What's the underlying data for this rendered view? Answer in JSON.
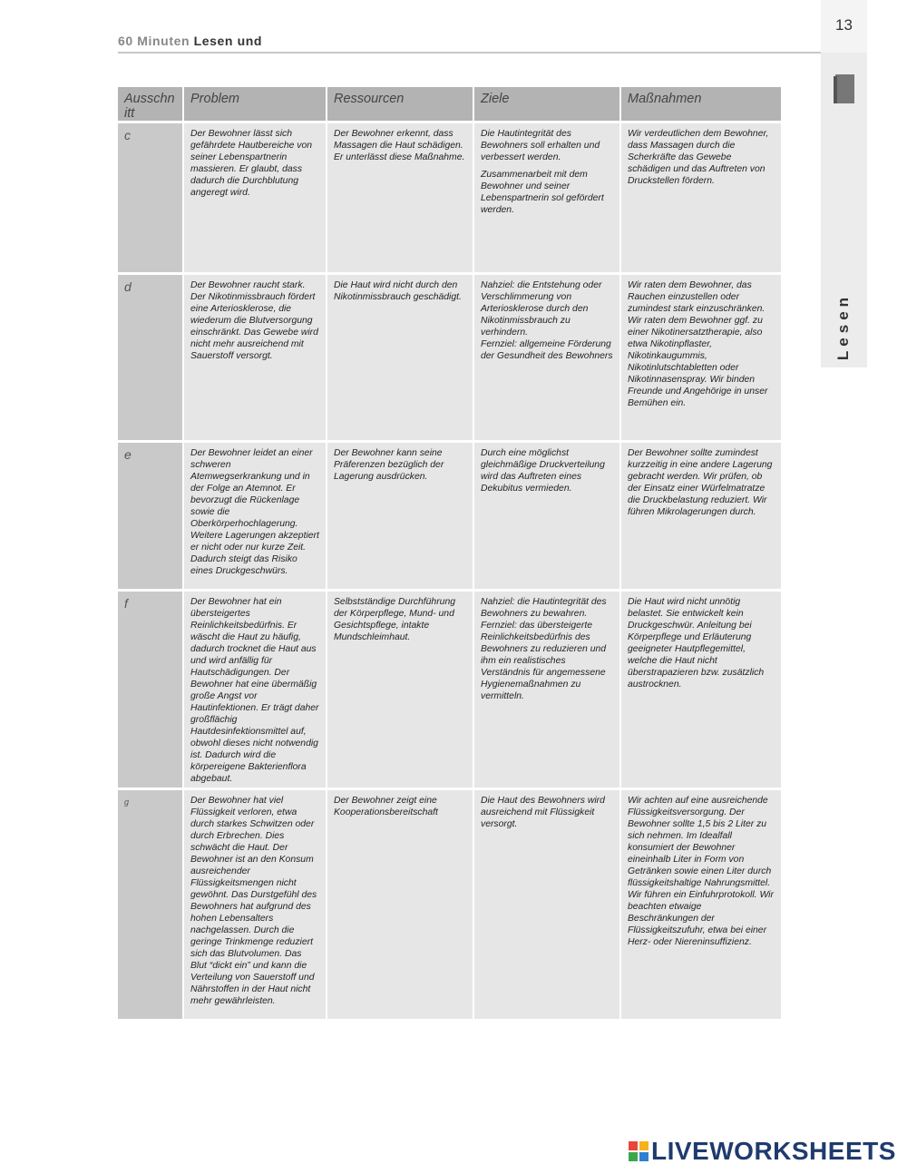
{
  "header": {
    "series": "60 Minuten",
    "title": "Lesen und",
    "page_number": "13"
  },
  "sidebar": {
    "label": "Lesen"
  },
  "table": {
    "columns": [
      "Ausschnitt",
      "Problem",
      "Ressourcen",
      "Ziele",
      "Maßnahmen"
    ],
    "rows": [
      [
        "c",
        "Der Bewohner lässt sich gefährdete Hautbereiche von seiner Lebenspartnerin massieren. Er glaubt, dass dadurch die Durchblutung angeregt wird.",
        "Der Bewohner erkennt, dass Massagen die Haut schädigen. Er unterlässt diese Maßnahme.",
        [
          "Die Hautintegrität des Bewohners soll erhalten und verbessert werden.",
          "Zusammenarbeit mit dem Bewohner und seiner Lebenspartnerin sol gefördert werden."
        ],
        "Wir verdeutlichen dem Bewohner, dass Massagen durch die Scherkräfte das Gewebe schädigen und das Auftreten von Druckstellen fördern."
      ],
      [
        "d",
        "Der Bewohner raucht stark. Der Nikotinmissbrauch fördert eine Arteriosklerose, die wiederum die Blutversorgung einschränkt. Das Gewebe wird nicht mehr ausreichend mit Sauerstoff versorgt.",
        "Die Haut wird nicht durch den Nikotinmissbrauch geschädigt.",
        "Nahziel: die Entstehung oder Verschlimmerung von Arteriosklerose durch den Nikotinmissbrauch zu verhindern.\nFernziel: allgemeine Förderung der Gesundheit des Bewohners",
        "Wir raten dem Bewohner, das Rauchen einzustellen oder zumindest stark einzuschränken. Wir raten dem Bewohner ggf. zu einer Nikotinersatztherapie, also etwa Nikotinpflaster, Nikotinkaugummis, Nikotinlutschtabletten oder Nikotinnasenspray. Wir binden Freunde und Angehörige in unser Bemühen ein."
      ],
      [
        "e",
        "Der Bewohner leidet an einer schweren Atemwegserkrankung und in der Folge an Atemnot. Er bevorzugt die Rückenlage sowie die Oberkörperhochlagerung. Weitere Lagerungen akzeptiert er nicht oder nur kurze Zeit. Dadurch steigt das Risiko eines Druckgeschwürs.",
        "Der Bewohner kann seine Präferenzen bezüglich der Lagerung ausdrücken.",
        "Durch eine möglichst gleichmäßige Druckverteilung wird das Auftreten eines Dekubitus vermieden.",
        "Der Bewohner sollte zumindest kurzzeitig in eine andere Lagerung gebracht werden. Wir prüfen, ob der Einsatz einer Würfelmatratze die Druckbelastung reduziert. Wir führen Mikrolagerungen durch."
      ],
      [
        "f",
        "Der Bewohner hat ein übersteigertes Reinlichkeitsbedürfnis. Er wäscht die Haut zu häufig, dadurch trocknet die Haut aus und wird anfällig für Hautschädigungen. Der Bewohner hat eine übermäßig große Angst vor Hautinfektionen. Er trägt daher großflächig Hautdesinfektionsmittel auf, obwohl dieses nicht notwendig ist. Dadurch wird die körpereigene Bakterienflora abgebaut.",
        "Selbstständige Durchführung der Körperpflege, Mund- und Gesichtspflege, intakte Mundschleimhaut.",
        "Nahziel: die Hautintegrität des Bewohners zu bewahren.\nFernziel: das übersteigerte Reinlichkeitsbedürfnis des Bewohners zu reduzieren und ihm ein realistisches Verständnis für angemessene Hygienemaßnahmen zu vermitteln.",
        "Die Haut wird nicht unnötig belastet. Sie entwickelt kein Druckgeschwür. Anleitung bei Körperpflege und Erläuterung geeigneter Hautpflegemittel, welche die Haut nicht überstrapazieren bzw. zusätzlich austrocknen."
      ],
      [
        "g",
        "Der Bewohner hat viel Flüssigkeit verloren, etwa durch starkes Schwitzen oder durch Erbrechen. Dies schwächt die Haut. Der Bewohner ist an den Konsum ausreichender Flüssigkeitsmengen nicht gewöhnt. Das Durstgefühl des Bewohners hat aufgrund des hohen Lebensalters nachgelassen. Durch die geringe Trinkmenge reduziert sich das Blutvolumen. Das Blut “dickt ein” und kann die Verteilung von Sauerstoff und Nährstoffen in der Haut nicht mehr gewährleisten.",
        "Der Bewohner zeigt eine Kooperationsbereitschaft",
        "Die Haut des Bewohners wird ausreichend mit Flüssigkeit versorgt.",
        "Wir achten auf eine ausreichende Flüssigkeitsversorgung. Der Bewohner sollte 1,5 bis 2 Liter zu sich nehmen. Im Idealfall konsumiert der Bewohner eineinhalb Liter in Form von Getränken sowie einen Liter durch flüssigkeitshaltige Nahrungsmittel. Wir führen ein Einfuhrprotokoll. Wir beachten etwaige Beschränkungen der Flüssigkeitszufuhr, etwa bei einer Herz- oder Niereninsuffizienz."
      ]
    ]
  },
  "footer": {
    "logo": "LIVEWORKSHEETS"
  }
}
